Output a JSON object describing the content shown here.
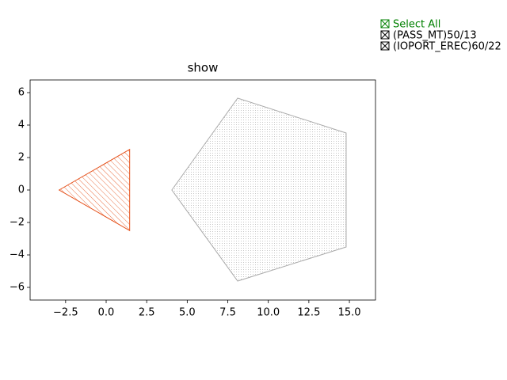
{
  "chart_data": {
    "type": "polygon",
    "title": "show",
    "select_all": "Select All",
    "select_all_color": "#008000",
    "xlim": [
      -4.69,
      16.61
    ],
    "ylim": [
      -6.78,
      6.78
    ],
    "xticks": [
      {
        "value": -2.5,
        "label": "−2.5"
      },
      {
        "value": 0,
        "label": "0.0"
      },
      {
        "value": 2.5,
        "label": "2.5"
      },
      {
        "value": 5,
        "label": "5.0"
      },
      {
        "value": 7.5,
        "label": "7.5"
      },
      {
        "value": 10,
        "label": "10.0"
      },
      {
        "value": 12.5,
        "label": "12.5"
      },
      {
        "value": 15,
        "label": "15.0"
      }
    ],
    "yticks": [
      {
        "value": -6,
        "label": "−6"
      },
      {
        "value": -4,
        "label": "−4"
      },
      {
        "value": -2,
        "label": "−2"
      },
      0,
      2,
      4,
      6
    ],
    "series": [
      {
        "name": "(PASS_MT)50/13",
        "color": "#e5501a",
        "hatch": "diagonal",
        "x": [
          -2.9,
          1.45,
          1.45
        ],
        "y": [
          0,
          2.5,
          -2.5
        ]
      },
      {
        "name": "(IOPORT_EREC)60/22",
        "color": "#aaaaaa",
        "hatch": "dots",
        "x": [
          4.05,
          8.11,
          14.8,
          14.8,
          8.11
        ],
        "y": [
          0,
          5.66,
          3.51,
          -3.51,
          -5.61
        ]
      }
    ]
  }
}
